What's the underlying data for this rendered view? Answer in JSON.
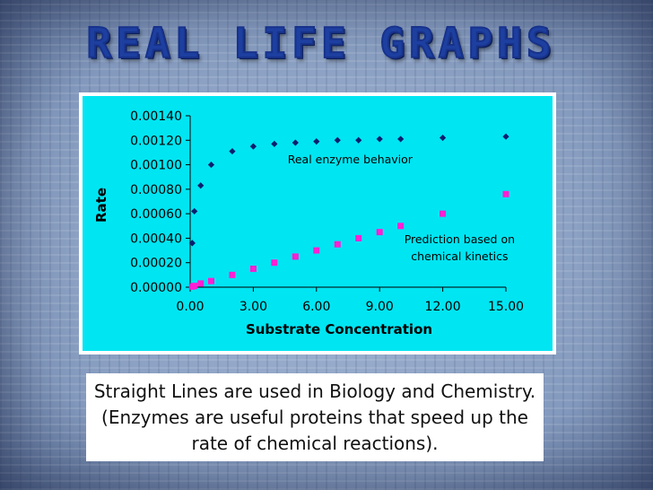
{
  "slide": {
    "title": "REAL LIFE GRAPHS",
    "caption": "Straight Lines are used in Biology and Chemistry. (Enzymes are useful proteins that speed up the rate of chemical reactions).",
    "colors": {
      "chart_background": "#00e5f2",
      "plot_background": "#00e5f2",
      "real_series": "#0a1e6e",
      "predicted_series": "#ff1fd2",
      "title": "#1d3fa0"
    }
  },
  "chart_data": {
    "type": "scatter",
    "title": "",
    "xlabel": "Substrate Concentration",
    "ylabel": "Rate",
    "xlim": [
      0,
      15
    ],
    "ylim": [
      0,
      0.0014
    ],
    "x_ticks": [
      "0.00",
      "3.00",
      "6.00",
      "9.00",
      "12.00",
      "15.00"
    ],
    "y_ticks": [
      "0.00000",
      "0.00020",
      "0.00040",
      "0.00060",
      "0.00080",
      "0.00100",
      "0.00120",
      "0.00140"
    ],
    "grid": false,
    "legend": "none",
    "series": [
      {
        "marker": "diamond",
        "color": "#0a1e6e",
        "x": [
          0.1,
          0.2,
          0.5,
          1,
          2,
          3,
          4,
          5,
          6,
          7,
          8,
          9,
          10,
          12,
          15
        ],
        "y": [
          0.00036,
          0.00062,
          0.00083,
          0.001,
          0.00111,
          0.00115,
          0.00117,
          0.00118,
          0.00119,
          0.0012,
          0.0012,
          0.00121,
          0.00121,
          0.00122,
          0.00123
        ]
      },
      {
        "marker": "square",
        "color": "#ff1fd2",
        "x": [
          0.1,
          0.2,
          0.5,
          1,
          2,
          3,
          4,
          5,
          6,
          7,
          8,
          9,
          10,
          12,
          15
        ],
        "y": [
          5e-06,
          1e-05,
          3e-05,
          5e-05,
          0.0001,
          0.00015,
          0.0002,
          0.00025,
          0.0003,
          0.00035,
          0.0004,
          0.00045,
          0.0005,
          0.0006,
          0.00076
        ]
      }
    ],
    "annotations": [
      {
        "lines": [
          "Real enzyme behavior"
        ],
        "x": 7.6,
        "y": 0.00101,
        "anchor": "middle"
      },
      {
        "lines": [
          "Prediction based on",
          "chemical kinetics"
        ],
        "x": 12.8,
        "y": 0.00036,
        "anchor": "middle"
      }
    ]
  }
}
